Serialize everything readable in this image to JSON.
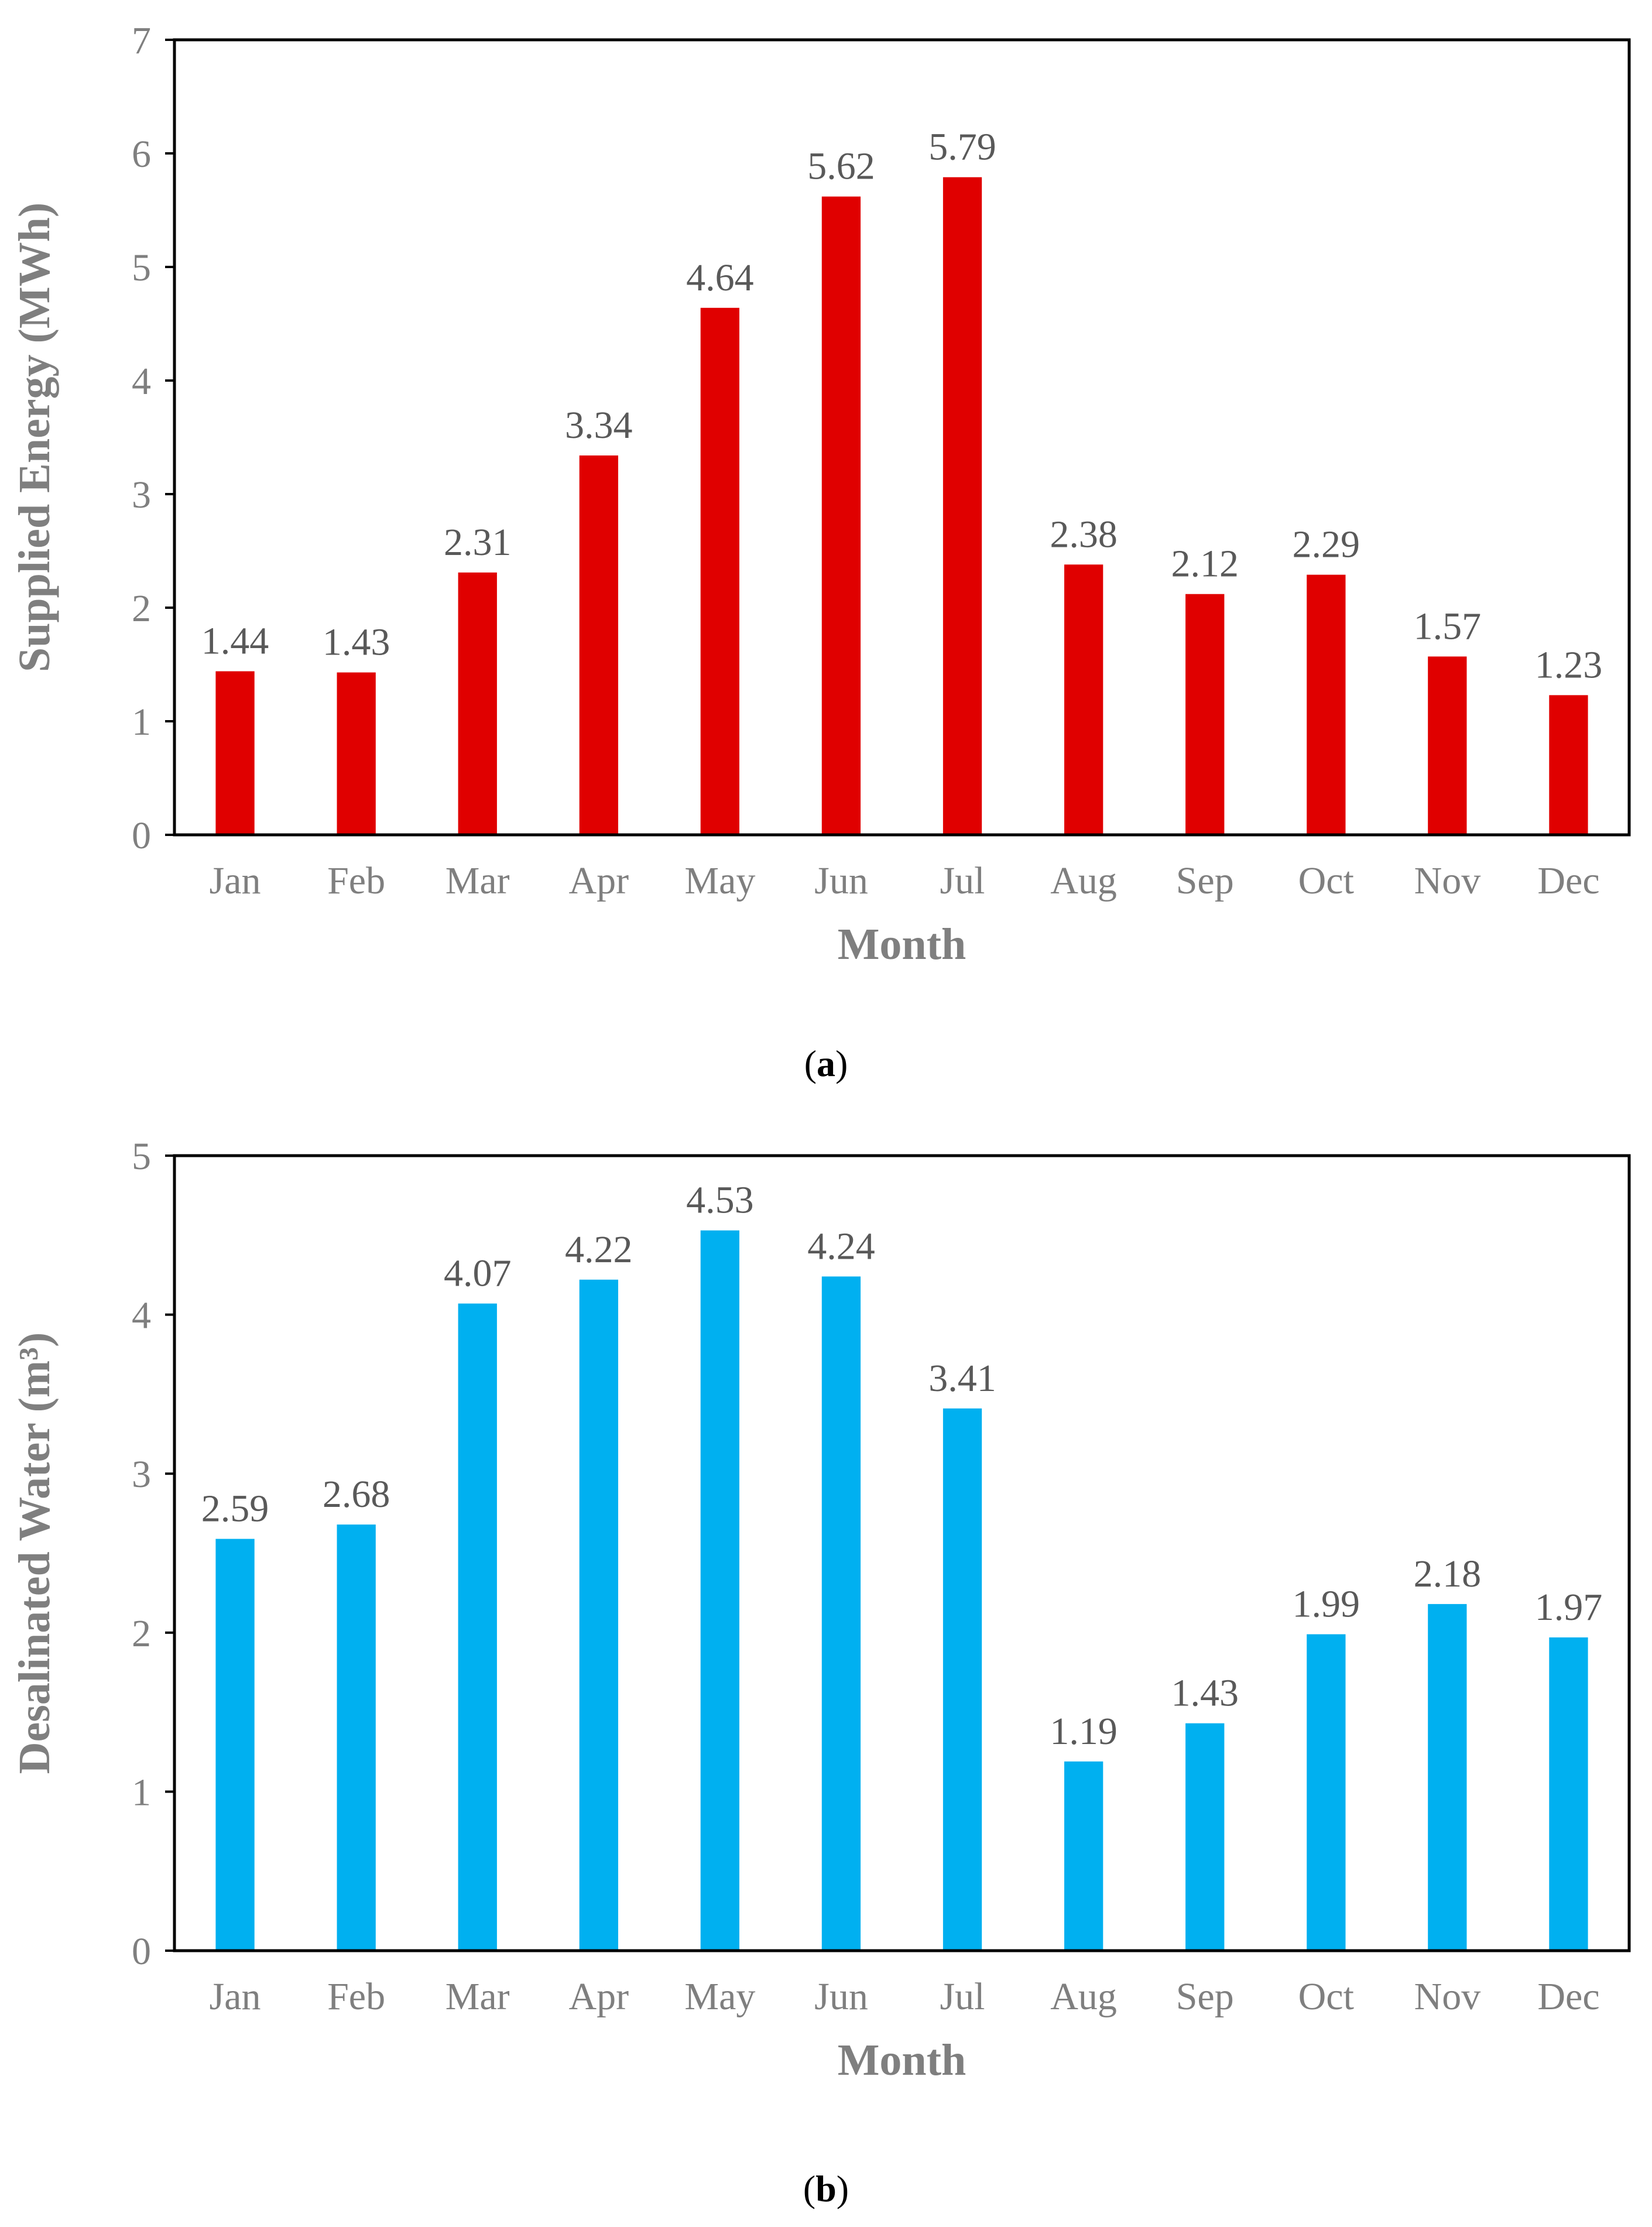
{
  "chart_data": [
    {
      "type": "bar",
      "panel_label": "a",
      "title": "",
      "categories": [
        "Jan",
        "Feb",
        "Mar",
        "Apr",
        "May",
        "Jun",
        "Jul",
        "Aug",
        "Sep",
        "Oct",
        "Nov",
        "Dec"
      ],
      "values": [
        1.44,
        1.43,
        2.31,
        3.34,
        4.64,
        5.62,
        5.79,
        2.38,
        2.12,
        2.29,
        1.57,
        1.23
      ],
      "data_labels": [
        "1.44",
        "1.43",
        "2.31",
        "3.34",
        "4.64",
        "5.62",
        "5.79",
        "2.38",
        "2.12",
        "2.29",
        "1.57",
        "1.23"
      ],
      "xlabel": "Month",
      "ylabel": "Supplied Energy (MWh)",
      "ylim": [
        0,
        7
      ],
      "yticks": [
        "0",
        "1",
        "2",
        "3",
        "4",
        "5",
        "6",
        "7"
      ],
      "grid": false,
      "bar_color": "#e00000"
    },
    {
      "type": "bar",
      "panel_label": "b",
      "title": "",
      "categories": [
        "Jan",
        "Feb",
        "Mar",
        "Apr",
        "May",
        "Jun",
        "Jul",
        "Aug",
        "Sep",
        "Oct",
        "Nov",
        "Dec"
      ],
      "values": [
        2.59,
        2.68,
        4.07,
        4.22,
        4.53,
        4.24,
        3.41,
        1.19,
        1.43,
        1.99,
        2.18,
        1.97
      ],
      "data_labels": [
        "2.59",
        "2.68",
        "4.07",
        "4.22",
        "4.53",
        "4.24",
        "3.41",
        "1.19",
        "1.43",
        "1.99",
        "2.18",
        "1.97"
      ],
      "xlabel": "Month",
      "ylabel": "Desalinated Water (m³)",
      "ylim": [
        0,
        5
      ],
      "yticks": [
        "0",
        "1",
        "2",
        "3",
        "4",
        "5"
      ],
      "grid": false,
      "bar_color": "#00b0f0"
    }
  ]
}
